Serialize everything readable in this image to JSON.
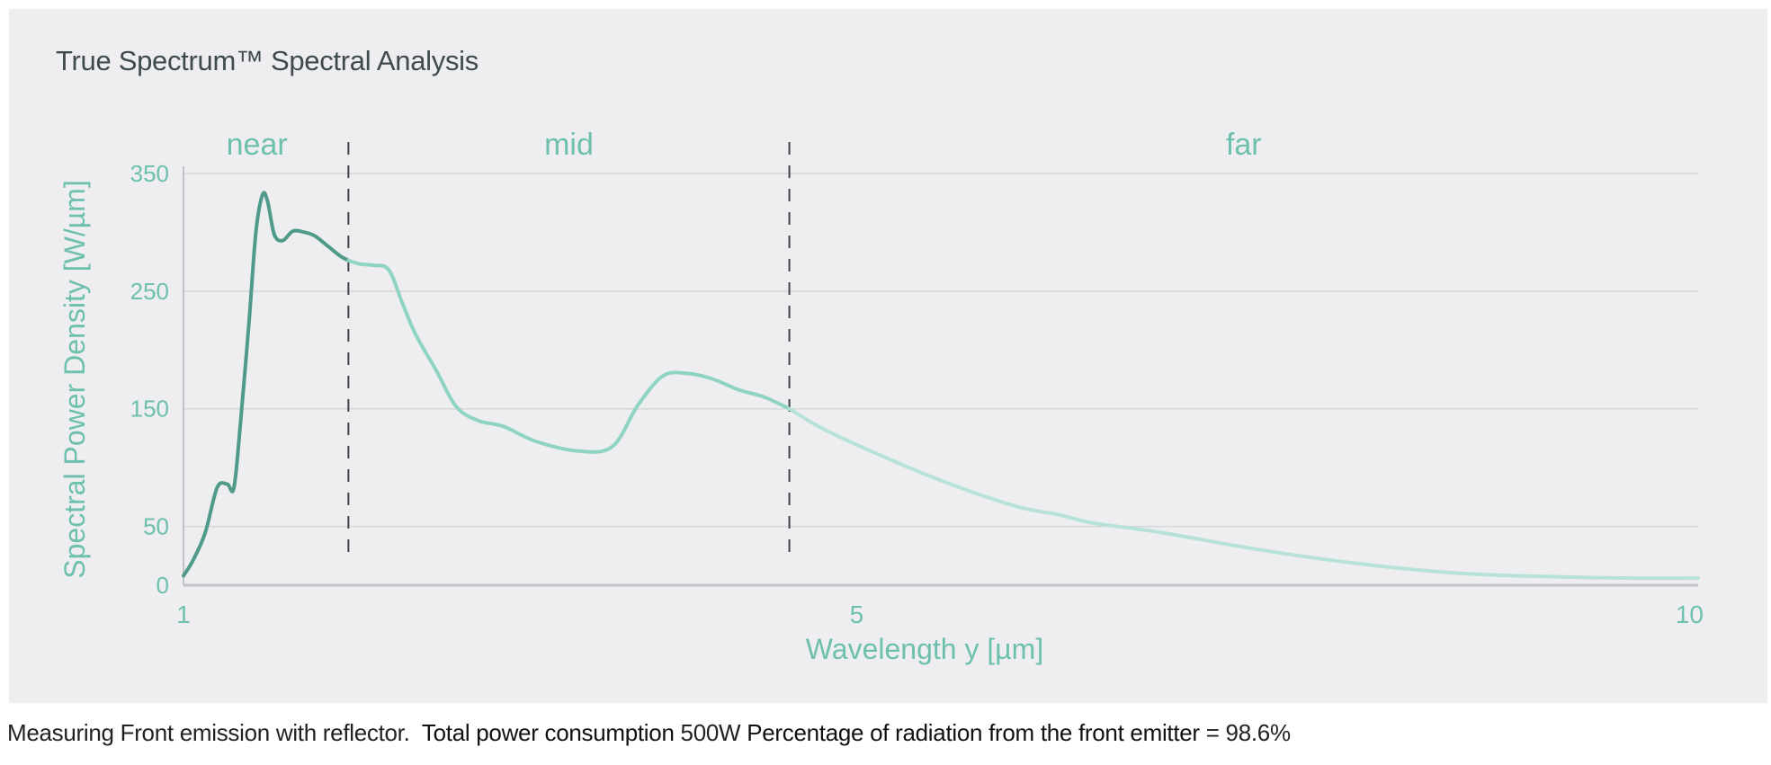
{
  "title": "True Spectrum™ Spectral Analysis",
  "caption": {
    "part1": "Measuring Front emission with reflector.",
    "label1": "Total power consumption",
    "value1": "500W",
    "label2": "Percentage of radiation from the front emitter",
    "value2": "= 98.6%"
  },
  "colors": {
    "near": "#4f9a8a",
    "mid": "#8fd3c3",
    "far": "#b6e2d8",
    "axis_text": "#6dbfae",
    "grid": "#d4d6d8",
    "divider": "#3e4446",
    "background": "#eeeef0"
  },
  "chart_data": {
    "type": "line",
    "title": "True Spectrum™ Spectral Analysis",
    "xlabel": "Wavelength y [µm]",
    "ylabel": "Spectral Power Density [W/µm]",
    "xlim": [
      1,
      10
    ],
    "ylim": [
      0,
      350
    ],
    "x_ticks": [
      {
        "value": 1,
        "label": "1"
      },
      {
        "value": 5,
        "label": "5"
      },
      {
        "value": 10,
        "label": "10"
      }
    ],
    "y_ticks": [
      {
        "value": 0,
        "label": "0"
      },
      {
        "value": 50,
        "label": "50"
      },
      {
        "value": 150,
        "label": "150"
      },
      {
        "value": 250,
        "label": "250"
      },
      {
        "value": 350,
        "label": "350"
      }
    ],
    "grid": true,
    "regions": [
      {
        "name": "near",
        "from": 1.0,
        "to": 1.98
      },
      {
        "name": "mid",
        "from": 1.98,
        "to": 4.6
      },
      {
        "name": "far",
        "from": 4.6,
        "to": 10.0
      }
    ],
    "series": [
      {
        "name": "Front emission",
        "x": [
          1.0,
          1.06,
          1.13,
          1.2,
          1.26,
          1.3,
          1.34,
          1.39,
          1.43,
          1.47,
          1.5,
          1.54,
          1.59,
          1.65,
          1.72,
          1.78,
          1.86,
          1.93,
          1.98,
          2.05,
          2.13,
          2.22,
          2.3,
          2.38,
          2.5,
          2.62,
          2.75,
          2.9,
          3.1,
          3.35,
          3.55,
          3.7,
          3.85,
          4.0,
          4.15,
          4.3,
          4.45,
          4.6,
          4.8,
          5.1,
          5.5,
          5.95,
          6.2,
          6.4,
          6.8,
          7.4,
          8.0,
          8.6,
          9.2,
          9.6,
          10.0
        ],
        "y": [
          8,
          22,
          45,
          83,
          86,
          83,
          140,
          225,
          300,
          332,
          326,
          298,
          293,
          301,
          300,
          297,
          288,
          280,
          276,
          273,
          272,
          268,
          240,
          213,
          183,
          152,
          140,
          135,
          122,
          114,
          118,
          153,
          178,
          180,
          175,
          166,
          160,
          150,
          133,
          113,
          89,
          67,
          60,
          53,
          45,
          30,
          18,
          10,
          7,
          6,
          6
        ]
      }
    ]
  }
}
